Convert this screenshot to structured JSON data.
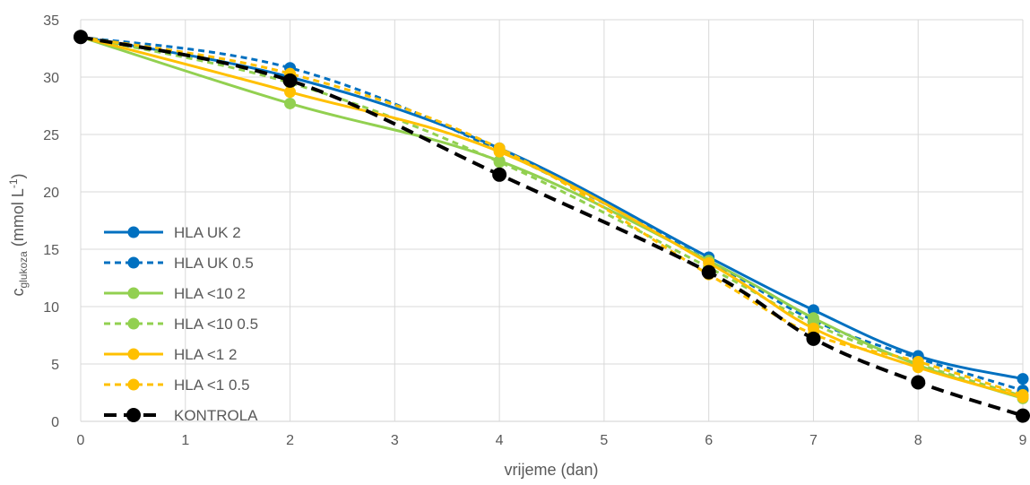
{
  "chart_data": {
    "type": "line",
    "xlabel": "vrijeme (dan)",
    "ylabel": {
      "prefix": "c",
      "subscript": "glukoza",
      "unit_open": " (mmol L",
      "superscript": "-1",
      "unit_close": ")"
    },
    "xlim": [
      0,
      9
    ],
    "ylim": [
      0,
      35
    ],
    "xticks": [
      0,
      1,
      2,
      3,
      4,
      5,
      6,
      7,
      8,
      9
    ],
    "yticks": [
      0,
      5,
      10,
      15,
      20,
      25,
      30,
      35
    ],
    "grid": true,
    "legend_position": "bottom-left",
    "x": [
      0,
      2,
      4,
      6,
      7,
      8,
      9
    ],
    "series": [
      {
        "name": "HLA UK 2",
        "color": "#0070C0",
        "dash": "solid",
        "marker_size": "normal",
        "values": [
          33.5,
          30.0,
          23.8,
          14.3,
          9.7,
          5.7,
          3.7
        ]
      },
      {
        "name": "HLA UK 0.5",
        "color": "#0070C0",
        "dash": "dashed",
        "marker_size": "normal",
        "values": [
          33.5,
          30.8,
          23.6,
          14.0,
          8.8,
          5.5,
          2.7
        ]
      },
      {
        "name": "HLA <10 2",
        "color": "#92D050",
        "dash": "solid",
        "marker_size": "normal",
        "values": [
          33.5,
          27.7,
          22.7,
          14.0,
          9.0,
          4.9,
          2.0
        ]
      },
      {
        "name": "HLA <10 0.5",
        "color": "#92D050",
        "dash": "dashed",
        "marker_size": "normal",
        "values": [
          33.5,
          29.5,
          22.6,
          13.4,
          8.5,
          5.0,
          2.2
        ]
      },
      {
        "name": "HLA <1 2",
        "color": "#FFC000",
        "dash": "solid",
        "marker_size": "normal",
        "values": [
          33.5,
          28.7,
          23.5,
          13.8,
          8.1,
          4.7,
          2.1
        ]
      },
      {
        "name": "HLA <1 0.5",
        "color": "#FFC000",
        "dash": "dashed",
        "marker_size": "normal",
        "values": [
          33.5,
          30.3,
          23.8,
          12.8,
          7.6,
          5.2,
          2.3
        ]
      },
      {
        "name": "KONTROLA",
        "color": "#000000",
        "dash": "dashed",
        "marker_size": "large",
        "values": [
          33.5,
          29.7,
          21.5,
          13.0,
          7.2,
          3.4,
          0.5
        ]
      }
    ]
  }
}
